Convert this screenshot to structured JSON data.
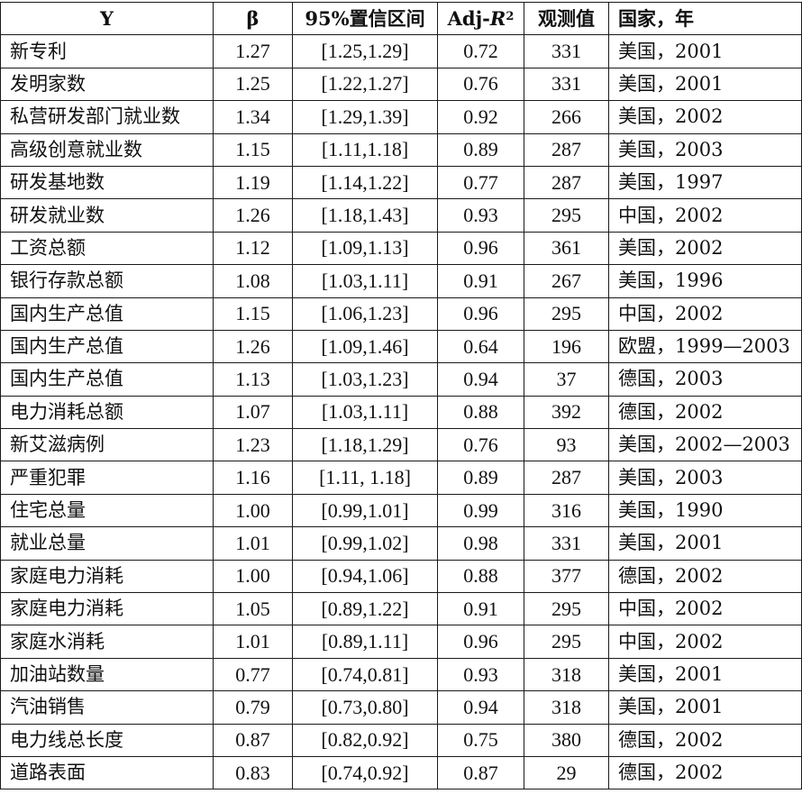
{
  "table": {
    "headers": {
      "y": "Y",
      "beta": "β",
      "ci": "95%置信区间",
      "adj_prefix": "Adj-",
      "adj_var": "R",
      "adj_sup": "2",
      "obs": "观测值",
      "country_year": "国家，年"
    },
    "rows": [
      {
        "y": "新专利",
        "beta": "1.27",
        "ci": "[1.25,1.29]",
        "adj": "0.72",
        "obs": "331",
        "cy": "美国，2001"
      },
      {
        "y": "发明家数",
        "beta": "1.25",
        "ci": "[1.22,1.27]",
        "adj": "0.76",
        "obs": "331",
        "cy": "美国，2001"
      },
      {
        "y": "私营研发部门就业数",
        "beta": "1.34",
        "ci": "[1.29,1.39]",
        "adj": "0.92",
        "obs": "266",
        "cy": "美国，2002"
      },
      {
        "y": "高级创意就业数",
        "beta": "1.15",
        "ci": "[1.11,1.18]",
        "adj": "0.89",
        "obs": "287",
        "cy": "美国，2003"
      },
      {
        "y": "研发基地数",
        "beta": "1.19",
        "ci": "[1.14,1.22]",
        "adj": "0.77",
        "obs": "287",
        "cy": "美国，1997"
      },
      {
        "y": "研发就业数",
        "beta": "1.26",
        "ci": "[1.18,1.43]",
        "adj": "0.93",
        "obs": "295",
        "cy": "中国，2002"
      },
      {
        "y": "工资总额",
        "beta": "1.12",
        "ci": "[1.09,1.13]",
        "adj": "0.96",
        "obs": "361",
        "cy": "美国，2002"
      },
      {
        "y": "银行存款总额",
        "beta": "1.08",
        "ci": "[1.03,1.11]",
        "adj": "0.91",
        "obs": "267",
        "cy": "美国，1996"
      },
      {
        "y": "国内生产总值",
        "beta": "1.15",
        "ci": "[1.06,1.23]",
        "adj": "0.96",
        "obs": "295",
        "cy": "中国，2002"
      },
      {
        "y": "国内生产总值",
        "beta": "1.26",
        "ci": "[1.09,1.46]",
        "adj": "0.64",
        "obs": "196",
        "cy": "欧盟，1999—2003"
      },
      {
        "y": "国内生产总值",
        "beta": "1.13",
        "ci": "[1.03,1.23]",
        "adj": "0.94",
        "obs": "37",
        "cy": "德国，2003"
      },
      {
        "y": "电力消耗总额",
        "beta": "1.07",
        "ci": "[1.03,1.11]",
        "adj": "0.88",
        "obs": "392",
        "cy": "德国，2002"
      },
      {
        "y": "新艾滋病例",
        "beta": "1.23",
        "ci": "[1.18,1.29]",
        "adj": "0.76",
        "obs": "93",
        "cy": "美国，2002—2003"
      },
      {
        "y": "严重犯罪",
        "beta": "1.16",
        "ci": "[1.11, 1.18]",
        "adj": "0.89",
        "obs": "287",
        "cy": "美国，2003"
      },
      {
        "y": "住宅总量",
        "beta": "1.00",
        "ci": "[0.99,1.01]",
        "adj": "0.99",
        "obs": "316",
        "cy": "美国，1990"
      },
      {
        "y": "就业总量",
        "beta": "1.01",
        "ci": "[0.99,1.02]",
        "adj": "0.98",
        "obs": "331",
        "cy": "美国，2001"
      },
      {
        "y": "家庭电力消耗",
        "beta": "1.00",
        "ci": "[0.94,1.06]",
        "adj": "0.88",
        "obs": "377",
        "cy": "德国，2002"
      },
      {
        "y": "家庭电力消耗",
        "beta": "1.05",
        "ci": "[0.89,1.22]",
        "adj": "0.91",
        "obs": "295",
        "cy": "中国，2002"
      },
      {
        "y": "家庭水消耗",
        "beta": "1.01",
        "ci": "[0.89,1.11]",
        "adj": "0.96",
        "obs": "295",
        "cy": "中国，2002"
      },
      {
        "y": "加油站数量",
        "beta": "0.77",
        "ci": "[0.74,0.81]",
        "adj": "0.93",
        "obs": "318",
        "cy": "美国，2001"
      },
      {
        "y": "汽油销售",
        "beta": "0.79",
        "ci": "[0.73,0.80]",
        "adj": "0.94",
        "obs": "318",
        "cy": "美国，2001"
      },
      {
        "y": "电力线总长度",
        "beta": "0.87",
        "ci": "[0.82,0.92]",
        "adj": "0.75",
        "obs": "380",
        "cy": "德国，2002"
      },
      {
        "y": "道路表面",
        "beta": "0.83",
        "ci": "[0.74,0.92]",
        "adj": "0.87",
        "obs": "29",
        "cy": "德国，2002"
      }
    ]
  }
}
